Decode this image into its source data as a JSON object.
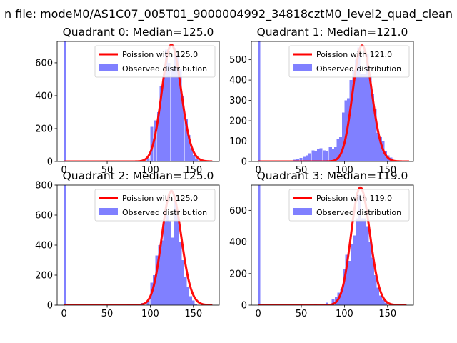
{
  "figure": {
    "suptitle": "n file: modeM0/AS1C07_005T01_9000004992_34818cztM0_level2_quad_clean"
  },
  "colors": {
    "poisson": "#ff0000",
    "observed": "#8080ff",
    "axis": "#000000",
    "legend_border": "#cccccc"
  },
  "chart_data": [
    {
      "type": "bar",
      "title": "Quadrant 0: Median=125.0",
      "median": 125.0,
      "xlim": [
        -8,
        180
      ],
      "ylim": [
        0,
        730
      ],
      "xticks": [
        0,
        50,
        100,
        150
      ],
      "yticks": [
        0,
        200,
        400,
        600
      ],
      "legend": {
        "position": "top-right",
        "poisson_label": "Poission with 125.0",
        "observed_label": "Observed distribution"
      },
      "series": [
        {
          "name": "Observed distribution",
          "bins": [
            [
              0,
              730
            ],
            [
              96,
              20
            ],
            [
              100,
              210
            ],
            [
              104,
              250
            ],
            [
              108,
              300
            ],
            [
              111,
              460
            ],
            [
              114,
              510
            ],
            [
              117,
              680
            ],
            [
              120,
              600
            ],
            [
              124,
              570
            ],
            [
              127,
              690
            ],
            [
              130,
              650
            ],
            [
              133,
              560
            ],
            [
              136,
              400
            ],
            [
              140,
              260
            ],
            [
              143,
              160
            ],
            [
              146,
              80
            ],
            [
              149,
              40
            ],
            [
              152,
              15
            ]
          ]
        },
        {
          "name": "Poission with 125.0",
          "lambda": 125.0,
          "scale": 710,
          "xrange": [
            0,
            172
          ]
        }
      ]
    },
    {
      "type": "bar",
      "title": "Quadrant 1: Median=121.0",
      "median": 121.0,
      "xlim": [
        -8,
        180
      ],
      "ylim": [
        0,
        590
      ],
      "xticks": [
        0,
        50,
        100,
        150
      ],
      "yticks": [
        0,
        100,
        200,
        300,
        400,
        500
      ],
      "legend": {
        "position": "top-right",
        "poisson_label": "Poission with 121.0",
        "observed_label": "Observed distribution"
      },
      "series": [
        {
          "name": "Observed distribution",
          "bins": [
            [
              0,
              590
            ],
            [
              40,
              8
            ],
            [
              44,
              12
            ],
            [
              48,
              18
            ],
            [
              52,
              22
            ],
            [
              55,
              30
            ],
            [
              58,
              40
            ],
            [
              62,
              55
            ],
            [
              65,
              50
            ],
            [
              68,
              60
            ],
            [
              71,
              65
            ],
            [
              75,
              55
            ],
            [
              78,
              50
            ],
            [
              82,
              70
            ],
            [
              85,
              60
            ],
            [
              88,
              70
            ],
            [
              91,
              110
            ],
            [
              94,
              120
            ],
            [
              97,
              240
            ],
            [
              100,
              300
            ],
            [
              103,
              310
            ],
            [
              106,
              400
            ],
            [
              109,
              450
            ],
            [
              112,
              500
            ],
            [
              115,
              560
            ],
            [
              118,
              430
            ],
            [
              122,
              430
            ],
            [
              125,
              530
            ],
            [
              128,
              420
            ],
            [
              131,
              330
            ],
            [
              134,
              260
            ],
            [
              137,
              140
            ],
            [
              140,
              120
            ],
            [
              143,
              100
            ],
            [
              146,
              50
            ],
            [
              149,
              30
            ],
            [
              152,
              20
            ]
          ]
        },
        {
          "name": "Poission with 121.0",
          "lambda": 121.0,
          "scale": 570,
          "xrange": [
            0,
            175
          ]
        }
      ]
    },
    {
      "type": "bar",
      "title": "Quadrant 2: Median=125.0",
      "median": 125.0,
      "xlim": [
        -8,
        180
      ],
      "ylim": [
        0,
        800
      ],
      "xticks": [
        0,
        50,
        100,
        150
      ],
      "yticks": [
        0,
        200,
        400,
        600,
        800
      ],
      "legend": {
        "position": "top-right",
        "poisson_label": "Poission with 125.0",
        "observed_label": "Observed distribution"
      },
      "series": [
        {
          "name": "Observed distribution",
          "bins": [
            [
              0,
              800
            ],
            [
              73,
              8
            ],
            [
              89,
              15
            ],
            [
              96,
              30
            ],
            [
              100,
              150
            ],
            [
              103,
              200
            ],
            [
              106,
              330
            ],
            [
              109,
              400
            ],
            [
              112,
              430
            ],
            [
              115,
              560
            ],
            [
              118,
              600
            ],
            [
              121,
              560
            ],
            [
              124,
              450
            ],
            [
              127,
              700
            ],
            [
              130,
              600
            ],
            [
              133,
              420
            ],
            [
              136,
              300
            ],
            [
              139,
              190
            ],
            [
              142,
              120
            ],
            [
              145,
              60
            ],
            [
              148,
              30
            ],
            [
              151,
              10
            ]
          ]
        },
        {
          "name": "Poission with 125.0",
          "lambda": 125.0,
          "scale": 760,
          "xrange": [
            0,
            172
          ]
        }
      ]
    },
    {
      "type": "bar",
      "title": "Quadrant 3: Median=119.0",
      "median": 119.0,
      "xlim": [
        -8,
        180
      ],
      "ylim": [
        0,
        760
      ],
      "xticks": [
        0,
        50,
        100,
        150
      ],
      "yticks": [
        0,
        200,
        400,
        600
      ],
      "legend": {
        "position": "top-right",
        "poisson_label": "Poission with 119.0",
        "observed_label": "Observed distribution"
      },
      "series": [
        {
          "name": "Observed distribution",
          "bins": [
            [
              0,
              760
            ],
            [
              65,
              6
            ],
            [
              78,
              15
            ],
            [
              85,
              40
            ],
            [
              89,
              50
            ],
            [
              92,
              80
            ],
            [
              95,
              100
            ],
            [
              98,
              230
            ],
            [
              101,
              320
            ],
            [
              104,
              280
            ],
            [
              107,
              390
            ],
            [
              110,
              440
            ],
            [
              113,
              550
            ],
            [
              116,
              700
            ],
            [
              119,
              550
            ],
            [
              122,
              550
            ],
            [
              125,
              500
            ],
            [
              128,
              400
            ],
            [
              131,
              300
            ],
            [
              134,
              190
            ],
            [
              137,
              110
            ],
            [
              140,
              60
            ],
            [
              143,
              35
            ],
            [
              146,
              15
            ]
          ]
        },
        {
          "name": "Poission with 119.0",
          "lambda": 119.0,
          "scale": 745,
          "xrange": [
            0,
            172
          ]
        }
      ]
    }
  ]
}
